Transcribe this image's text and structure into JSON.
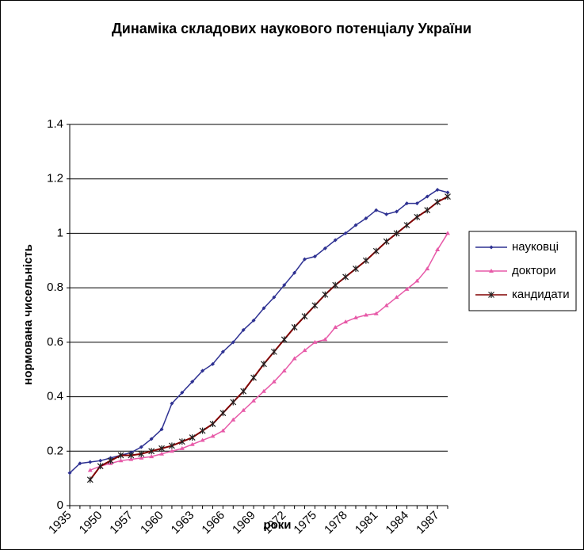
{
  "chart_data": {
    "type": "line",
    "title": "Динаміка складових наукового потенціалу України",
    "x_label": "роки",
    "y_label": "нормована чисельність",
    "categories": [
      "1935",
      null,
      null,
      "1950",
      null,
      null,
      "1957",
      null,
      null,
      "1960",
      null,
      null,
      "1963",
      null,
      null,
      "1966",
      null,
      null,
      "1969",
      null,
      null,
      "1972",
      null,
      null,
      "1975",
      null,
      null,
      "1978",
      null,
      null,
      "1981",
      null,
      null,
      "1984",
      null,
      null,
      "1987",
      null
    ],
    "series": [
      {
        "name": "науковці",
        "color": "#2e3192",
        "marker": "diamond",
        "values": [
          0.12,
          0.155,
          0.16,
          0.165,
          0.175,
          0.185,
          0.195,
          0.215,
          0.245,
          0.28,
          0.375,
          0.415,
          0.455,
          0.495,
          0.52,
          0.565,
          0.6,
          0.645,
          0.68,
          0.725,
          0.765,
          0.81,
          0.855,
          0.905,
          0.915,
          0.945,
          0.975,
          1.0,
          1.03,
          1.055,
          1.085,
          1.07,
          1.08,
          1.11,
          1.11,
          1.135,
          1.16,
          1.15
        ]
      },
      {
        "name": "доктори",
        "color": "#e75aa8",
        "marker": "triangle",
        "values": [
          null,
          null,
          0.13,
          0.145,
          0.155,
          0.165,
          0.17,
          0.175,
          0.18,
          0.19,
          0.2,
          0.21,
          0.225,
          0.24,
          0.255,
          0.275,
          0.315,
          0.35,
          0.385,
          0.42,
          0.455,
          0.495,
          0.54,
          0.57,
          0.6,
          0.61,
          0.655,
          0.675,
          0.69,
          0.7,
          0.705,
          0.735,
          0.765,
          0.795,
          0.825,
          0.87,
          0.94,
          1.0
        ]
      },
      {
        "name": "кандидати",
        "color": "#800000",
        "marker": "star",
        "values": [
          null,
          null,
          0.095,
          0.145,
          0.165,
          0.185,
          0.185,
          0.19,
          0.2,
          0.21,
          0.22,
          0.235,
          0.25,
          0.275,
          0.3,
          0.34,
          0.38,
          0.42,
          0.47,
          0.52,
          0.565,
          0.61,
          0.655,
          0.695,
          0.735,
          0.775,
          0.81,
          0.84,
          0.87,
          0.9,
          0.935,
          0.97,
          1.0,
          1.03,
          1.06,
          1.085,
          1.115,
          1.135
        ]
      }
    ],
    "ylim": [
      0,
      1.4
    ],
    "yticks": [
      0,
      0.2,
      0.4,
      0.6,
      0.8,
      1,
      1.2,
      1.4
    ],
    "grid": true,
    "legend": "right"
  }
}
